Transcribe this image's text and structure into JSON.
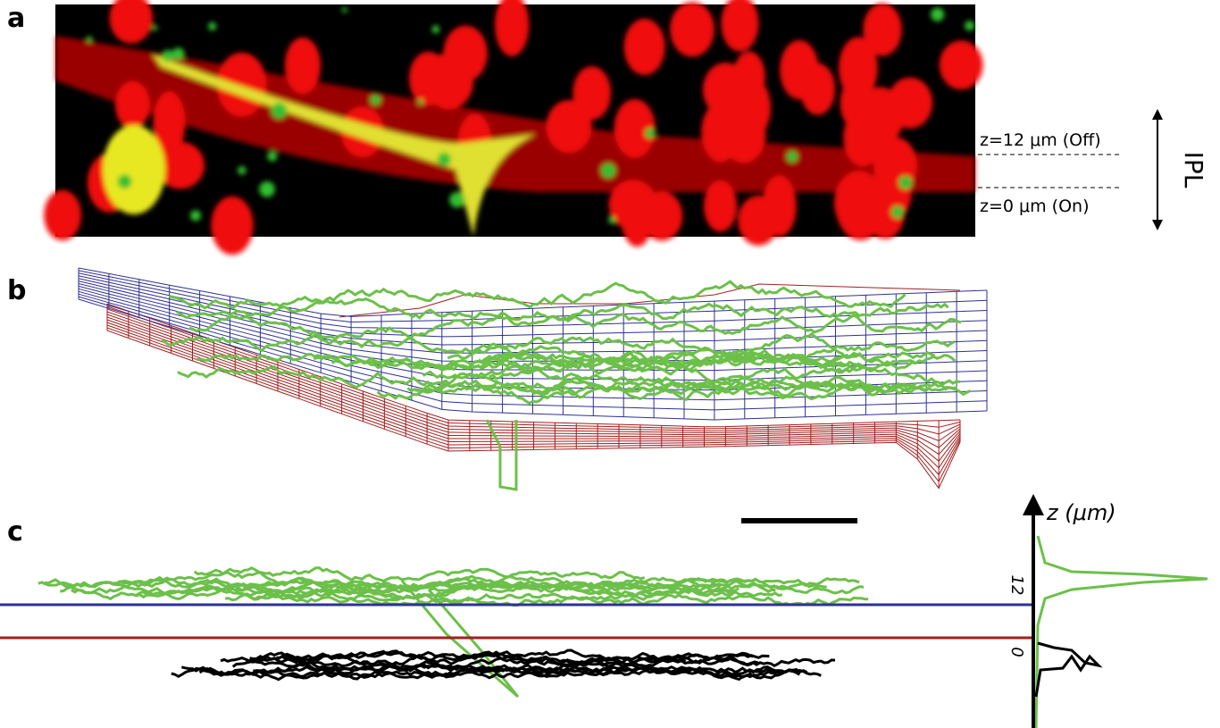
{
  "panels": [
    {
      "label": "a",
      "annotations": {
        "off_level": "z=12 μm (Off)",
        "on_level": "z=0 μm (On)",
        "layer": "IPL"
      }
    },
    {
      "label": "b"
    },
    {
      "label": "c",
      "axis": {
        "title": "z (μm)",
        "ticks": [
          "12",
          "0"
        ]
      }
    }
  ]
}
